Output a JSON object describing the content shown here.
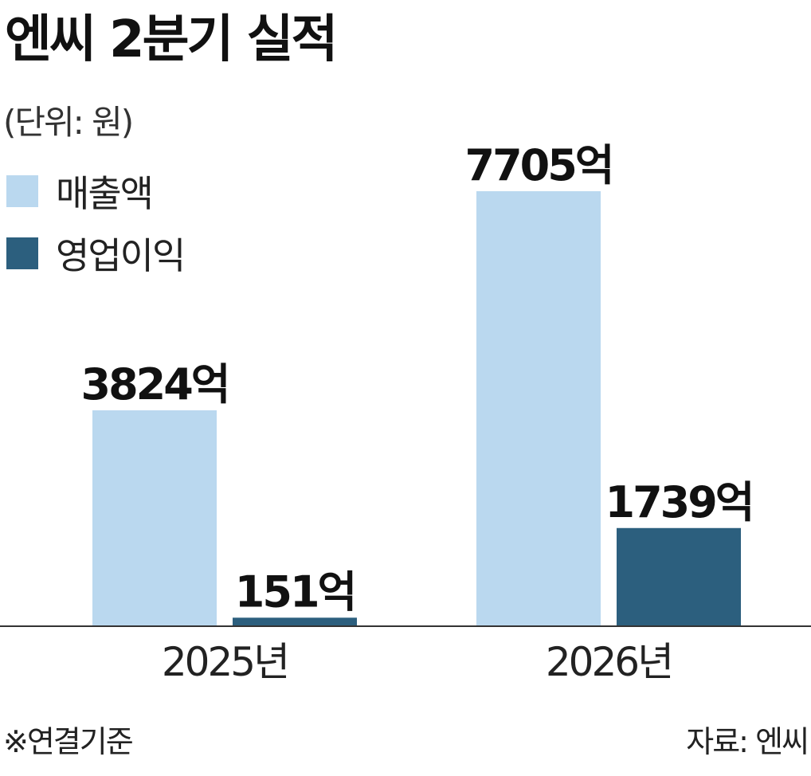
{
  "title": "엔씨 2분기 실적",
  "unit": "(단위: 원)",
  "legend": [
    {
      "label": "매출액",
      "color": "#bad8ef"
    },
    {
      "label": "영업이익",
      "color": "#2c5f7e"
    }
  ],
  "chart_data": {
    "type": "bar",
    "title": "엔씨 2분기 실적",
    "unit": "(단위: 원)",
    "categories": [
      "2025년",
      "2026년"
    ],
    "series": [
      {
        "name": "매출액",
        "color": "#bad8ef",
        "values": [
          3824,
          7705
        ],
        "labels": [
          "3824억",
          "7705억"
        ]
      },
      {
        "name": "영업이익",
        "color": "#2c5f7e",
        "values": [
          151,
          1739
        ],
        "labels": [
          "151억",
          "1739억"
        ]
      }
    ],
    "ylim": [
      0,
      7705
    ],
    "grid": false,
    "legend_position": "top-left"
  },
  "note": "※연결기준",
  "source": "자료: 엔씨"
}
